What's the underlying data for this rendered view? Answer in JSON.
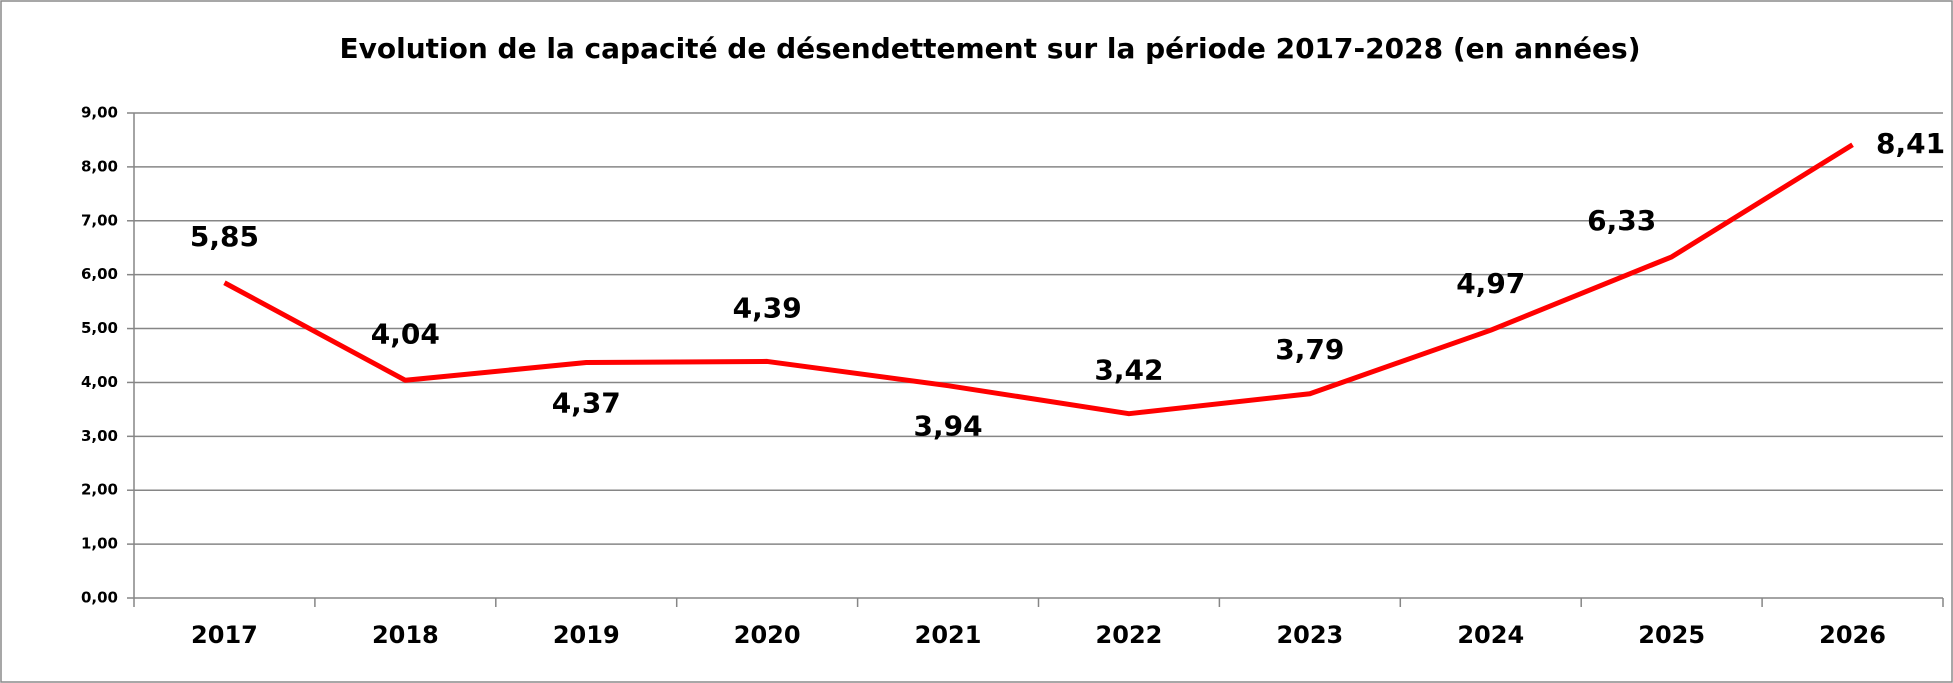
{
  "chart_data": {
    "type": "line",
    "title": "Evolution de la capacité de désendettement sur la période 2017-2028 (en années)",
    "categories": [
      "2017",
      "2018",
      "2019",
      "2020",
      "2021",
      "2022",
      "2023",
      "2024",
      "2025",
      "2026"
    ],
    "series": [
      {
        "name": "Capacité de désendettement",
        "color": "#ff0000",
        "values": [
          5.85,
          4.04,
          4.37,
          4.39,
          3.94,
          3.42,
          3.79,
          4.97,
          6.33,
          8.41
        ],
        "value_labels": [
          "5,85",
          "4,04",
          "4,37",
          "4,39",
          "3,94",
          "3,42",
          "3,79",
          "4,97",
          "6,33",
          "8,41"
        ]
      }
    ],
    "ylim": [
      0,
      9
    ],
    "yticks": [
      {
        "value": 0,
        "label": "0,00"
      },
      {
        "value": 1,
        "label": "1,00"
      },
      {
        "value": 2,
        "label": "2,00"
      },
      {
        "value": 3,
        "label": "3,00"
      },
      {
        "value": 4,
        "label": "4,00"
      },
      {
        "value": 5,
        "label": "5,00"
      },
      {
        "value": 6,
        "label": "6,00"
      },
      {
        "value": 7,
        "label": "7,00"
      },
      {
        "value": 8,
        "label": "8,00"
      },
      {
        "value": 9,
        "label": "9,00"
      }
    ],
    "grid": true
  }
}
